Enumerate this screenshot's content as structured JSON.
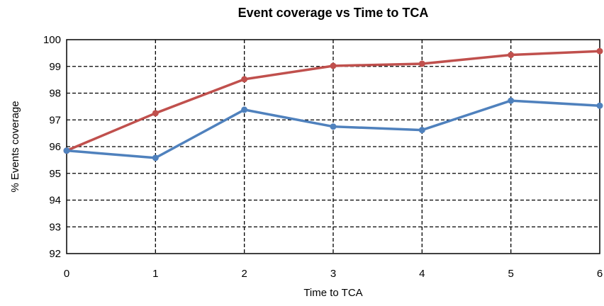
{
  "chart_data": {
    "type": "line",
    "title": "Event coverage vs Time to TCA",
    "xlabel": "Time to TCA",
    "ylabel": "% Events coverage",
    "x": [
      0,
      1,
      2,
      3,
      4,
      5,
      6
    ],
    "xlim": [
      0,
      6
    ],
    "ylim": [
      92,
      100
    ],
    "xticks": [
      0,
      1,
      2,
      3,
      4,
      5,
      6
    ],
    "yticks": [
      92,
      93,
      94,
      95,
      96,
      97,
      98,
      99,
      100
    ],
    "grid": true,
    "series": [
      {
        "color": "#C0504D",
        "values": [
          95.85,
          97.25,
          98.52,
          99.02,
          99.1,
          99.43,
          99.57
        ]
      },
      {
        "color": "#4F81BD",
        "values": [
          95.85,
          95.58,
          97.38,
          96.75,
          96.62,
          97.72,
          97.53
        ]
      }
    ]
  }
}
